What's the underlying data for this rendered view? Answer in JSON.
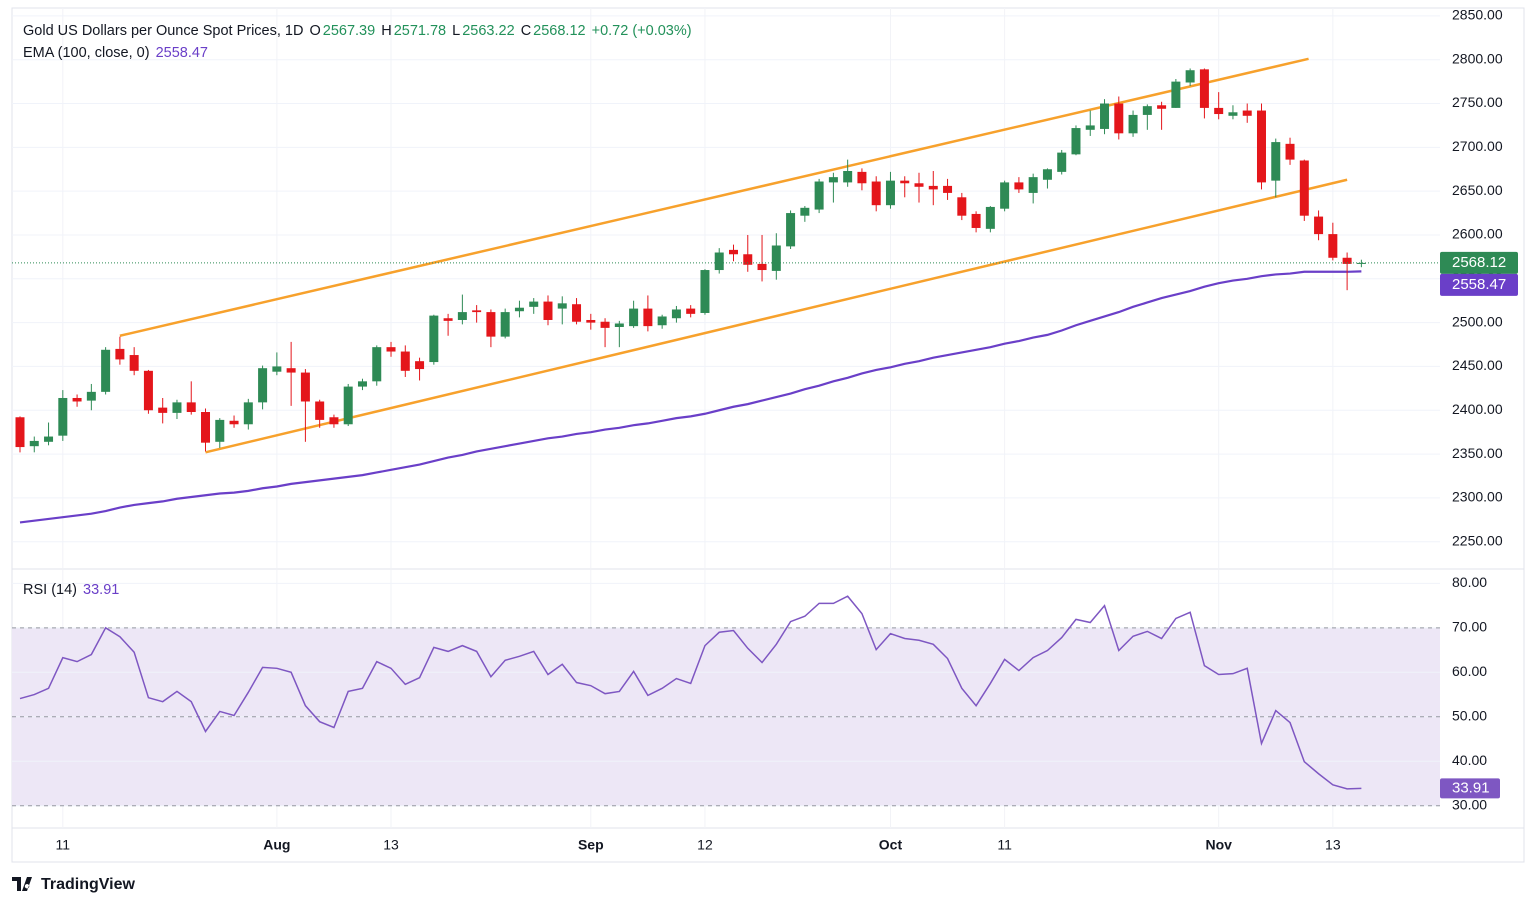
{
  "chart_data": [
    {
      "type": "candlestick",
      "title": "Gold US Dollars per Ounce Spot Prices, 1D",
      "ohlc_labels": [
        "O",
        "H",
        "L",
        "C"
      ],
      "change": "+0.72 (+0.03%)",
      "categories": [
        null,
        null,
        null,
        "11",
        null,
        null,
        null,
        null,
        null,
        null,
        null,
        null,
        null,
        null,
        null,
        null,
        null,
        null,
        "Aug",
        null,
        null,
        null,
        null,
        null,
        null,
        null,
        "13",
        null,
        null,
        null,
        null,
        null,
        null,
        null,
        null,
        null,
        null,
        null,
        null,
        null,
        "Sep",
        null,
        null,
        null,
        null,
        null,
        null,
        null,
        "12",
        null,
        null,
        null,
        null,
        null,
        null,
        null,
        null,
        null,
        null,
        null,
        null,
        "Oct",
        null,
        null,
        null,
        null,
        null,
        null,
        null,
        "11",
        null,
        null,
        null,
        null,
        null,
        null,
        null,
        null,
        null,
        null,
        null,
        null,
        null,
        null,
        "Nov",
        null,
        null,
        null,
        null,
        null,
        null,
        null,
        "13",
        null,
        null
      ],
      "open": [
        2392,
        2359,
        2364,
        2371,
        2414,
        2411,
        2421,
        2470,
        2463,
        2445,
        2403,
        2397,
        2409,
        2398,
        2364,
        2388,
        2384,
        2409,
        2444,
        2448,
        2443,
        2410,
        2392,
        2384,
        2427,
        2433,
        2472,
        2467,
        2456,
        2455,
        2505,
        2503,
        2514,
        2512,
        2484,
        2513,
        2518,
        2524,
        2516,
        2521,
        2503,
        2501,
        2495,
        2496,
        2516,
        2497,
        2505,
        2516,
        2511,
        2560,
        2583,
        2578,
        2567,
        2559,
        2587,
        2622,
        2629,
        2660,
        2660,
        2672,
        2661,
        2634,
        2662,
        2659,
        2656,
        2656,
        2643,
        2624,
        2607,
        2630,
        2660,
        2648,
        2663,
        2672,
        2692,
        2720,
        2721,
        2750,
        2716,
        2737,
        2748,
        2745,
        2774,
        2789,
        2745,
        2736,
        2742,
        2742,
        2662,
        2704,
        2685,
        2621,
        2601,
        2574,
        2567.39
      ],
      "high": [
        2393,
        2370,
        2386,
        2423,
        2418,
        2430,
        2472,
        2484,
        2472,
        2446,
        2414,
        2412,
        2433,
        2402,
        2391,
        2394,
        2413,
        2451,
        2466,
        2478,
        2447,
        2412,
        2395,
        2430,
        2436,
        2474,
        2478,
        2474,
        2460,
        2509,
        2510,
        2532,
        2520,
        2515,
        2516,
        2525,
        2528,
        2531,
        2530,
        2528,
        2510,
        2505,
        2502,
        2525,
        2531,
        2509,
        2519,
        2520,
        2561,
        2585,
        2589,
        2600,
        2600,
        2602,
        2628,
        2633,
        2664,
        2671,
        2686,
        2676,
        2667,
        2672,
        2667,
        2671,
        2673,
        2664,
        2648,
        2627,
        2633,
        2662,
        2666,
        2670,
        2676,
        2697,
        2725,
        2742,
        2755,
        2758,
        2742,
        2749,
        2752,
        2778,
        2790,
        2790,
        2763,
        2748,
        2750,
        2750,
        2710,
        2711,
        2686,
        2628,
        2614,
        2580,
        2571.78
      ],
      "low": [
        2352,
        2352,
        2360,
        2365,
        2404,
        2400,
        2418,
        2452,
        2440,
        2396,
        2385,
        2390,
        2395,
        2353,
        2357,
        2380,
        2378,
        2401,
        2440,
        2405,
        2364,
        2380,
        2380,
        2382,
        2423,
        2428,
        2461,
        2438,
        2434,
        2452,
        2485,
        2498,
        2500,
        2472,
        2482,
        2506,
        2510,
        2497,
        2498,
        2498,
        2492,
        2472,
        2472,
        2494,
        2490,
        2493,
        2500,
        2506,
        2509,
        2556,
        2570,
        2558,
        2547,
        2549,
        2584,
        2615,
        2625,
        2637,
        2655,
        2651,
        2627,
        2630,
        2643,
        2637,
        2634,
        2640,
        2617,
        2603,
        2603,
        2627,
        2648,
        2636,
        2653,
        2669,
        2691,
        2713,
        2715,
        2709,
        2712,
        2720,
        2720,
        2745,
        2770,
        2733,
        2732,
        2732,
        2728,
        2652,
        2643,
        2680,
        2616,
        2594,
        2571,
        2537,
        2563.22
      ],
      "close": [
        2358,
        2365,
        2370,
        2414,
        2410,
        2421,
        2469,
        2458,
        2445,
        2400,
        2397,
        2409,
        2398,
        2363,
        2389,
        2384,
        2409,
        2448,
        2450,
        2443,
        2410,
        2389,
        2384,
        2427,
        2433,
        2472,
        2467,
        2445,
        2447,
        2508,
        2502,
        2512,
        2512,
        2484,
        2512,
        2517,
        2524,
        2503,
        2522,
        2501,
        2500,
        2494,
        2499,
        2516,
        2496,
        2507,
        2515,
        2510,
        2560,
        2580,
        2578,
        2566,
        2560,
        2588,
        2625,
        2631,
        2661,
        2666,
        2673,
        2659,
        2634,
        2662,
        2659,
        2655,
        2652,
        2648,
        2622,
        2608,
        2632,
        2660,
        2652,
        2666,
        2675,
        2694,
        2722,
        2725,
        2750,
        2716,
        2737,
        2747,
        2744,
        2775,
        2788,
        2745,
        2738,
        2740,
        2736,
        2660,
        2706,
        2686,
        2622,
        2601,
        2574,
        2567,
        2568.12
      ],
      "up_color": "#2e8a55",
      "down_color": "#e4161b",
      "ema": {
        "name": "EMA (100, close, 0)",
        "color": "#6a3fc8",
        "values": [
          2272,
          2274,
          2276,
          2278,
          2280,
          2282,
          2285,
          2289,
          2292,
          2294,
          2296,
          2299,
          2301,
          2303,
          2305,
          2306,
          2308,
          2311,
          2313,
          2316,
          2318,
          2320,
          2322,
          2324,
          2326,
          2329,
          2332,
          2335,
          2338,
          2342,
          2346,
          2349,
          2353,
          2356,
          2359,
          2362,
          2365,
          2368,
          2370,
          2373,
          2375,
          2378,
          2380,
          2383,
          2385,
          2388,
          2391,
          2393,
          2396,
          2400,
          2404,
          2407,
          2411,
          2415,
          2419,
          2424,
          2428,
          2433,
          2437,
          2442,
          2446,
          2449,
          2453,
          2456,
          2460,
          2463,
          2466,
          2469,
          2472,
          2476,
          2479,
          2483,
          2486,
          2491,
          2497,
          2502,
          2507,
          2512,
          2518,
          2523,
          2528,
          2532,
          2536,
          2541,
          2545,
          2548,
          2550,
          2553,
          2555,
          2556,
          2558,
          2558,
          2558,
          2558,
          2558.47
        ]
      },
      "trend_lines": [
        {
          "color": "#f7a12c",
          "x": [
            7,
            90.3
          ],
          "y": [
            2485,
            2801
          ]
        },
        {
          "color": "#f7a12c",
          "x": [
            13,
            93
          ],
          "y": [
            2352,
            2663
          ]
        }
      ],
      "ylim": [
        2220,
        2859
      ],
      "yticks": [
        {
          "value": 2250,
          "label": "2250.00"
        },
        {
          "value": 2300,
          "label": "2300.00"
        },
        {
          "value": 2350,
          "label": "2350.00"
        },
        {
          "value": 2400,
          "label": "2400.00"
        },
        {
          "value": 2450,
          "label": "2450.00"
        },
        {
          "value": 2500,
          "label": "2500.00"
        },
        {
          "value": 2550,
          "label": "2550.00"
        },
        {
          "value": 2600,
          "label": "2600.00"
        },
        {
          "value": 2650,
          "label": "2650.00"
        },
        {
          "value": 2700,
          "label": "2700.00"
        },
        {
          "value": 2750,
          "label": "2750.00"
        },
        {
          "value": 2800,
          "label": "2800.00"
        },
        {
          "value": 2850,
          "label": "2850.00"
        }
      ],
      "grid": true
    },
    {
      "type": "line",
      "series": [
        {
          "name": "RSI (14)",
          "color": "#7e57c2",
          "values": [
            54.1,
            55,
            56.4,
            63.3,
            62.4,
            64,
            70,
            68,
            64.5,
            54.3,
            53.4,
            55.7,
            53.4,
            46.7,
            51.2,
            50.3,
            55.5,
            61.1,
            60.9,
            60,
            52.5,
            48.9,
            47.6,
            55.7,
            56.4,
            62.4,
            60.9,
            57.3,
            58.8,
            65.6,
            64.7,
            66,
            64.7,
            59,
            62.7,
            63.6,
            64.7,
            59.5,
            61.8,
            57.7,
            57,
            55.2,
            55.7,
            60.2,
            54.8,
            56.4,
            58.6,
            57.5,
            66,
            69,
            69.4,
            65.4,
            62.2,
            66.3,
            71.4,
            72.6,
            75.5,
            75.5,
            77.1,
            73.2,
            65.1,
            68.7,
            67.6,
            67.2,
            66.3,
            63.1,
            56.4,
            52.5,
            57.5,
            62.9,
            60.4,
            63.3,
            64.9,
            67.8,
            71.9,
            71.2,
            75,
            64.9,
            68.1,
            69.2,
            67.6,
            72.1,
            73.5,
            61.5,
            59.5,
            59.7,
            60.9,
            44,
            51.4,
            48.7,
            39.9,
            37.2,
            34.7,
            33.8,
            33.91
          ]
        }
      ],
      "band": [
        30,
        70
      ],
      "band_color": "#ede7f6",
      "levels": [
        30,
        50,
        70
      ],
      "ylim": [
        25,
        83
      ],
      "yticks": [
        {
          "value": 30,
          "label": "30.00"
        },
        {
          "value": 40,
          "label": "40.00"
        },
        {
          "value": 50,
          "label": "50.00"
        },
        {
          "value": 60,
          "label": "60.00"
        },
        {
          "value": 70,
          "label": "70.00"
        },
        {
          "value": 80,
          "label": "80.00"
        }
      ],
      "grid": true
    }
  ],
  "brand": "TradingView"
}
